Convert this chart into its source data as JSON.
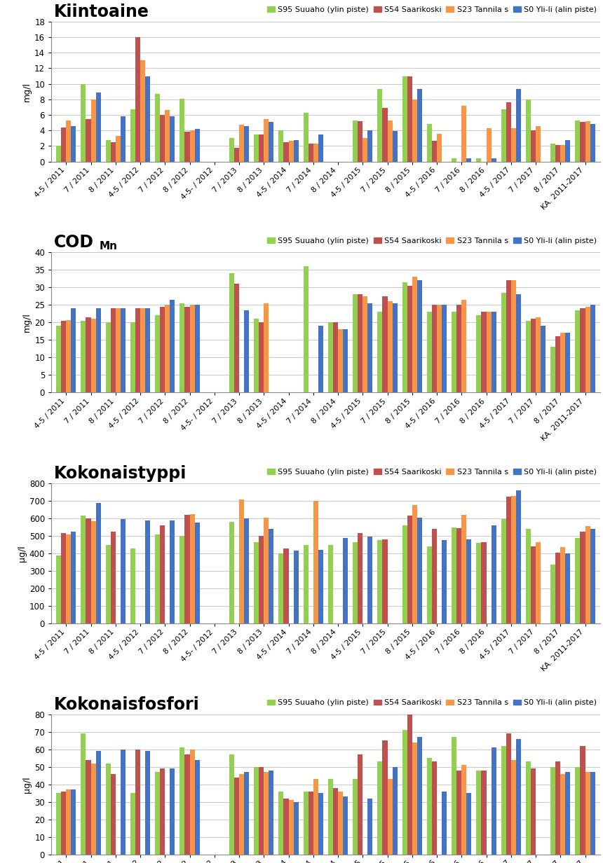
{
  "categories": [
    "4-5 / 2011",
    "7 / 2011",
    "8 / 2011",
    "4-5 / 2012",
    "7 / 2012",
    "8 / 2012",
    "4-5- / 2012",
    "7 / 2013",
    "8 / 2013",
    "4-5 / 2014",
    "7 / 2014",
    "8 / 2014",
    "4-5 / 2015",
    "7 / 2015",
    "8 / 2015",
    "4-5 / 2016",
    "7 / 2016",
    "8 / 2016",
    "4-5 / 2017",
    "7 / 2017",
    "8 / 2017",
    "KA. 2011-2017"
  ],
  "series_labels": [
    "S95 Suuaho (ylin piste)",
    "S54 Saarikoski",
    "S23 Tannila s",
    "S0 Yli-li (alin piste)"
  ],
  "series_colors": [
    "#92D050",
    "#C0504D",
    "#F79646",
    "#4472C4"
  ],
  "kiintoaine": {
    "title": "Kiintoaine",
    "ylabel": "mg/l",
    "ylim": [
      0,
      18
    ],
    "ytick_step": 2,
    "S95": [
      2.0,
      10.0,
      2.8,
      6.7,
      8.7,
      8.1,
      null,
      3.0,
      3.5,
      4.0,
      6.3,
      null,
      5.3,
      9.3,
      11.0,
      4.8,
      0.4,
      0.4,
      6.7,
      8.0,
      2.3,
      5.3
    ],
    "S54": [
      4.4,
      5.5,
      2.5,
      16.0,
      6.0,
      3.8,
      null,
      1.8,
      3.5,
      2.5,
      2.3,
      null,
      5.2,
      6.9,
      11.0,
      2.7,
      null,
      null,
      7.6,
      4.0,
      2.1,
      5.1
    ],
    "S23": [
      5.3,
      8.0,
      3.3,
      13.0,
      6.6,
      4.0,
      null,
      4.7,
      5.5,
      2.7,
      2.3,
      null,
      3.0,
      5.3,
      8.0,
      3.6,
      7.2,
      4.3,
      4.3,
      4.6,
      2.1,
      5.2
    ],
    "S0": [
      4.6,
      8.9,
      5.8,
      11.0,
      5.8,
      4.2,
      null,
      4.6,
      5.1,
      2.8,
      3.5,
      null,
      4.0,
      3.9,
      9.3,
      null,
      0.4,
      0.4,
      9.3,
      null,
      2.8,
      4.8
    ]
  },
  "cod": {
    "title": "COD",
    "title_sub": "Mn",
    "ylabel": "mg/l",
    "ylim": [
      0,
      40
    ],
    "ytick_step": 5,
    "S95": [
      19.0,
      20.5,
      20.0,
      20.0,
      22.0,
      25.5,
      null,
      34.0,
      21.0,
      null,
      36.0,
      20.0,
      28.0,
      23.0,
      31.5,
      23.0,
      23.0,
      22.0,
      28.5,
      20.5,
      13.0,
      23.5
    ],
    "S54": [
      20.5,
      21.5,
      24.0,
      24.0,
      24.5,
      24.5,
      null,
      31.0,
      20.0,
      null,
      null,
      20.0,
      28.0,
      27.5,
      30.5,
      25.0,
      25.0,
      23.0,
      32.0,
      21.0,
      16.0,
      24.0
    ],
    "S23": [
      20.6,
      21.0,
      24.0,
      24.0,
      25.0,
      25.0,
      null,
      null,
      25.5,
      null,
      null,
      18.0,
      27.5,
      26.0,
      33.0,
      25.0,
      26.5,
      23.0,
      32.0,
      21.5,
      17.0,
      24.5
    ],
    "S0": [
      24.0,
      24.0,
      24.0,
      24.0,
      26.5,
      25.0,
      null,
      23.5,
      null,
      null,
      19.0,
      18.0,
      25.5,
      25.5,
      32.0,
      25.0,
      null,
      23.0,
      28.0,
      19.0,
      17.0,
      25.0
    ]
  },
  "kokonaistyppi": {
    "title": "Kokonaistyppi",
    "ylabel": "μg/l",
    "ylim": [
      0,
      800
    ],
    "ytick_step": 100,
    "S95": [
      390,
      615,
      450,
      430,
      510,
      500,
      null,
      580,
      465,
      400,
      450,
      450,
      465,
      475,
      560,
      440,
      550,
      460,
      595,
      540,
      335,
      490
    ],
    "S54": [
      515,
      600,
      525,
      null,
      560,
      620,
      null,
      null,
      500,
      430,
      null,
      null,
      515,
      480,
      615,
      540,
      545,
      465,
      725,
      440,
      405,
      525
    ],
    "S23": [
      510,
      585,
      null,
      null,
      null,
      625,
      null,
      710,
      605,
      null,
      700,
      null,
      null,
      null,
      675,
      null,
      620,
      null,
      730,
      465,
      435,
      555
    ],
    "S0": [
      525,
      690,
      595,
      590,
      590,
      575,
      null,
      600,
      540,
      415,
      420,
      490,
      495,
      null,
      605,
      475,
      480,
      560,
      760,
      null,
      400,
      540
    ]
  },
  "kokonaisfosfori": {
    "title": "Kokonaisfosfori",
    "ylabel": "μg/l",
    "ylim": [
      0,
      80
    ],
    "ytick_step": 10,
    "S95": [
      35,
      69,
      52,
      35,
      47,
      61,
      null,
      57,
      50,
      36,
      36,
      43,
      43,
      53,
      71,
      55,
      67,
      48,
      62,
      53,
      50,
      50
    ],
    "S54": [
      36,
      54,
      46,
      60,
      49,
      57,
      null,
      44,
      50,
      32,
      36,
      38,
      57,
      65,
      80,
      53,
      48,
      48,
      69,
      49,
      53,
      62
    ],
    "S23": [
      37,
      52,
      null,
      null,
      null,
      60,
      null,
      46,
      47,
      31,
      43,
      36,
      null,
      43,
      64,
      null,
      51,
      null,
      54,
      null,
      46,
      47
    ],
    "S0": [
      37,
      59,
      60,
      59,
      49,
      54,
      null,
      47,
      48,
      30,
      35,
      33,
      32,
      50,
      67,
      36,
      35,
      61,
      66,
      null,
      47,
      47
    ]
  },
  "background_color": "#FFFFFF",
  "plot_bg_color": "#FFFFFF",
  "grid_color": "#C8C8C8"
}
